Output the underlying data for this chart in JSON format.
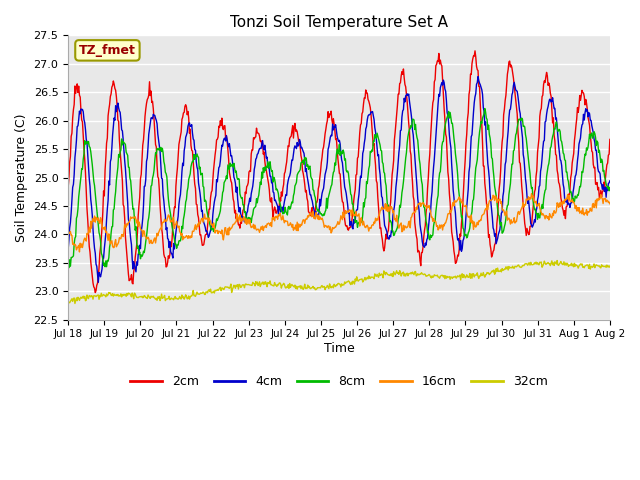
{
  "title": "Tonzi Soil Temperature Set A",
  "xlabel": "Time",
  "ylabel": "Soil Temperature (C)",
  "annotation": "TZ_fmet",
  "ylim": [
    22.5,
    27.5
  ],
  "series_labels": [
    "2cm",
    "4cm",
    "8cm",
    "16cm",
    "32cm"
  ],
  "series_colors": [
    "#ee0000",
    "#0000cc",
    "#00bb00",
    "#ff8800",
    "#cccc00"
  ],
  "x_tick_labels": [
    "Jul 18",
    "Jul 19",
    "Jul 20",
    "Jul 21",
    "Jul 22",
    "Jul 23",
    "Jul 24",
    "Jul 25",
    "Jul 26",
    "Jul 27",
    "Jul 28",
    "Jul 29",
    "Jul 30",
    "Jul 31",
    "Aug 1",
    "Aug 2"
  ],
  "plot_bg": "#e8e8e8",
  "fig_bg": "#ffffff",
  "grid_color": "#ffffff",
  "n_points": 720,
  "seed": 12
}
